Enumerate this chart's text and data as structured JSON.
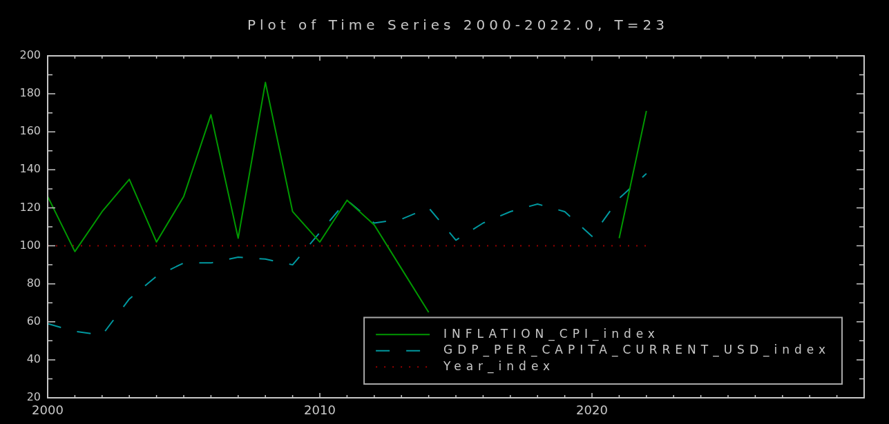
{
  "chart_data": {
    "type": "line",
    "title": "Plot of Time Series 2000-2022.0, T=23",
    "x": [
      2000,
      2001,
      2002,
      2003,
      2004,
      2005,
      2006,
      2007,
      2008,
      2009,
      2010,
      2011,
      2012,
      2013,
      2014,
      2015,
      2016,
      2017,
      2018,
      2019,
      2020,
      2021,
      2022
    ],
    "series": [
      {
        "name": "INFLATION_CPI_index",
        "color": "#009900",
        "line_style": "solid",
        "values": [
          126,
          97,
          118,
          135,
          102,
          126,
          169,
          104,
          186,
          118,
          102,
          124,
          111,
          88,
          65,
          null,
          null,
          null,
          null,
          null,
          null,
          104,
          171
        ]
      },
      {
        "name": "GDP_PER_CAPITA_CURRENT_USD_index",
        "color": "#0099a0",
        "line_style": "dashed",
        "values": [
          59,
          55,
          53,
          72,
          84,
          91,
          91,
          94,
          93,
          90,
          107,
          124,
          112,
          114,
          120,
          103,
          112,
          118,
          122,
          118,
          105,
          125,
          138
        ]
      },
      {
        "name": "Year_index",
        "color": "#990000",
        "line_style": "dotted",
        "values": [
          100,
          100,
          100,
          100,
          100,
          100,
          100,
          100,
          100,
          100,
          100,
          100,
          100,
          100,
          100,
          100,
          100,
          100,
          100,
          100,
          100,
          100,
          100
        ]
      }
    ],
    "xlim": [
      2000,
      2030
    ],
    "xticks": [
      2000,
      {
        "value": 2001,
        "label": null
      },
      {
        "value": 2002,
        "label": null
      },
      {
        "value": 2003,
        "label": null
      },
      {
        "value": 2004,
        "label": null
      },
      {
        "value": 2005,
        "label": null
      },
      {
        "value": 2006,
        "label": null
      },
      {
        "value": 2007,
        "label": null
      },
      {
        "value": 2008,
        "label": null
      },
      {
        "value": 2009,
        "label": null
      },
      2010,
      {
        "value": 2011,
        "label": null
      },
      {
        "value": 2012,
        "label": null
      },
      {
        "value": 2013,
        "label": null
      },
      {
        "value": 2014,
        "label": null
      },
      {
        "value": 2015,
        "label": null
      },
      {
        "value": 2016,
        "label": null
      },
      {
        "value": 2017,
        "label": null
      },
      {
        "value": 2018,
        "label": null
      },
      {
        "value": 2019,
        "label": null
      },
      2020,
      {
        "value": 2021,
        "label": null
      },
      {
        "value": 2022,
        "label": null
      },
      {
        "value": 2023,
        "label": null
      },
      {
        "value": 2024,
        "label": null
      },
      {
        "value": 2025,
        "label": null
      },
      {
        "value": 2026,
        "label": null
      },
      {
        "value": 2027,
        "label": null
      },
      {
        "value": 2028,
        "label": null
      },
      {
        "value": 2029,
        "label": null
      }
    ],
    "ylim": [
      20,
      200
    ],
    "yticks": [
      20,
      {
        "value": 30,
        "label": null
      },
      40,
      {
        "value": 50,
        "label": null
      },
      60,
      {
        "value": 70,
        "label": null
      },
      80,
      {
        "value": 90,
        "label": null
      },
      100,
      {
        "value": 110,
        "label": null
      },
      120,
      {
        "value": 130,
        "label": null
      },
      140,
      {
        "value": 150,
        "label": null
      },
      160,
      {
        "value": 170,
        "label": null
      },
      180,
      {
        "value": 190,
        "label": null
      },
      200
    ],
    "legend": "bottom right"
  }
}
